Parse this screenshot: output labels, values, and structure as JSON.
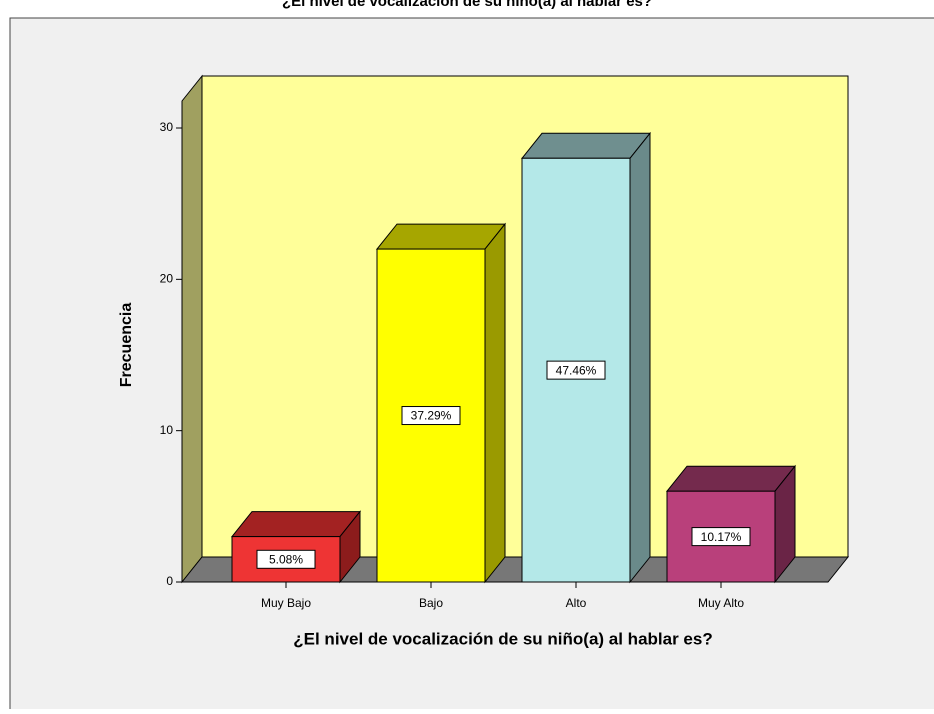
{
  "chart_data": {
    "type": "bar3d",
    "title": "¿El nivel de vocalización de su niño(a) al hablar es?",
    "x_label": "¿El nivel de vocalización de su niño(a) al hablar es?",
    "y_label": "Frecuencia",
    "categories": [
      "Muy Bajo",
      "Bajo",
      "Alto",
      "Muy Alto"
    ],
    "values": [
      3,
      22,
      28,
      6
    ],
    "percent_labels": [
      "5.08%",
      "37.29%",
      "47.46%",
      "10.17%"
    ],
    "colors": [
      [
        "#ee3434",
        "#a32222",
        "#8c1c1c"
      ],
      [
        "#ffff00",
        "#a6a600",
        "#9a9a00"
      ],
      [
        "#b4e8e8",
        "#6f8f8f",
        "#6a8a8a"
      ],
      [
        "#b9407b",
        "#742a4d",
        "#6a2446"
      ]
    ],
    "ylim": [
      0,
      30
    ],
    "yticks": [
      0,
      10,
      20,
      30
    ]
  }
}
